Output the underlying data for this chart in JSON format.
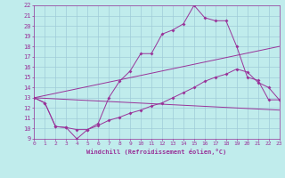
{
  "xlabel": "Windchill (Refroidissement éolien,°C)",
  "background_color": "#c0ecec",
  "grid_color": "#a0ccd8",
  "line_color": "#993399",
  "xlim": [
    0,
    23
  ],
  "ylim": [
    9,
    22
  ],
  "xticks": [
    0,
    1,
    2,
    3,
    4,
    5,
    6,
    7,
    8,
    9,
    10,
    11,
    12,
    13,
    14,
    15,
    16,
    17,
    18,
    19,
    20,
    21,
    22,
    23
  ],
  "yticks": [
    9,
    10,
    11,
    12,
    13,
    14,
    15,
    16,
    17,
    18,
    19,
    20,
    21,
    22
  ],
  "line1_x": [
    0,
    1,
    2,
    3,
    4,
    5,
    6,
    7,
    8,
    9,
    10,
    11,
    12,
    13,
    14,
    15,
    16,
    17,
    18,
    19,
    20,
    21,
    22,
    23
  ],
  "line1_y": [
    13,
    12.5,
    10.2,
    10.1,
    9.0,
    9.9,
    10.5,
    13.0,
    14.6,
    15.6,
    17.3,
    17.3,
    19.2,
    19.6,
    20.2,
    22.0,
    20.8,
    20.5,
    20.5,
    18.0,
    15.0,
    14.7,
    12.8,
    12.8
  ],
  "line2_x": [
    0,
    1,
    2,
    3,
    4,
    5,
    6,
    7,
    8,
    9,
    10,
    11,
    12,
    13,
    14,
    15,
    16,
    17,
    18,
    19,
    20,
    21,
    22,
    23
  ],
  "line2_y": [
    13,
    12.5,
    10.2,
    10.1,
    9.9,
    9.9,
    10.3,
    10.8,
    11.1,
    11.5,
    11.8,
    12.2,
    12.5,
    13.0,
    13.5,
    14.0,
    14.6,
    15.0,
    15.3,
    15.8,
    15.5,
    14.5,
    14.0,
    12.8
  ],
  "line3_x": [
    0,
    23
  ],
  "line3_y": [
    13,
    11.8
  ],
  "line4_x": [
    0,
    23
  ],
  "line4_y": [
    13,
    18.0
  ]
}
